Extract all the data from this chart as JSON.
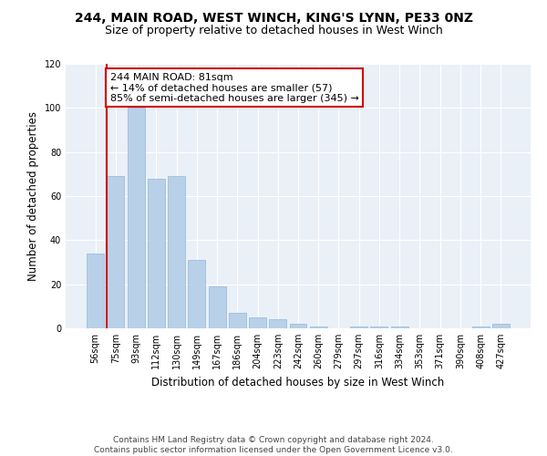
{
  "title": "244, MAIN ROAD, WEST WINCH, KING'S LYNN, PE33 0NZ",
  "subtitle": "Size of property relative to detached houses in West Winch",
  "xlabel": "Distribution of detached houses by size in West Winch",
  "ylabel": "Number of detached properties",
  "categories": [
    "56sqm",
    "75sqm",
    "93sqm",
    "112sqm",
    "130sqm",
    "149sqm",
    "167sqm",
    "186sqm",
    "204sqm",
    "223sqm",
    "242sqm",
    "260sqm",
    "279sqm",
    "297sqm",
    "316sqm",
    "334sqm",
    "353sqm",
    "371sqm",
    "390sqm",
    "408sqm",
    "427sqm"
  ],
  "values": [
    34,
    69,
    100,
    68,
    69,
    31,
    19,
    7,
    5,
    4,
    2,
    1,
    0,
    1,
    1,
    1,
    0,
    0,
    0,
    1,
    2
  ],
  "bar_color": "#b8d0e8",
  "bar_edge_color": "#93b8d8",
  "vline_color": "#cc0000",
  "annotation_text": "244 MAIN ROAD: 81sqm\n← 14% of detached houses are smaller (57)\n85% of semi-detached houses are larger (345) →",
  "annotation_box_color": "#ffffff",
  "annotation_box_edge": "#cc0000",
  "ylim": [
    0,
    120
  ],
  "yticks": [
    0,
    20,
    40,
    60,
    80,
    100,
    120
  ],
  "bg_color": "#eaf0f8",
  "footer": "Contains HM Land Registry data © Crown copyright and database right 2024.\nContains public sector information licensed under the Open Government Licence v3.0.",
  "title_fontsize": 10,
  "subtitle_fontsize": 9,
  "xlabel_fontsize": 8.5,
  "ylabel_fontsize": 8.5,
  "tick_fontsize": 7,
  "footer_fontsize": 6.5,
  "annotation_fontsize": 8
}
